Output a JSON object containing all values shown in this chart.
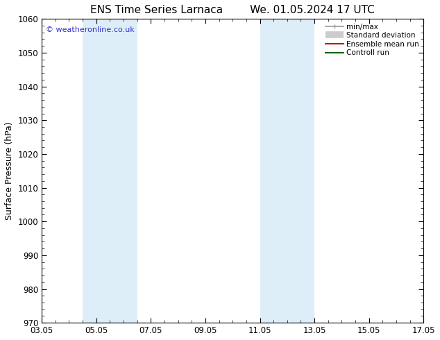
{
  "title_left": "ENS Time Series Larnaca",
  "title_right": "We. 01.05.2024 17 UTC",
  "ylabel": "Surface Pressure (hPa)",
  "ylim": [
    970,
    1060
  ],
  "yticks": [
    970,
    980,
    990,
    1000,
    1010,
    1020,
    1030,
    1040,
    1050,
    1060
  ],
  "xlim": [
    0,
    14
  ],
  "xtick_labels": [
    "03.05",
    "05.05",
    "07.05",
    "09.05",
    "11.05",
    "13.05",
    "15.05",
    "17.05"
  ],
  "xtick_positions": [
    0,
    2,
    4,
    6,
    8,
    10,
    12,
    14
  ],
  "shaded_bands": [
    {
      "x_start": 1.5,
      "x_end": 3.5
    },
    {
      "x_start": 8.0,
      "x_end": 10.0
    }
  ],
  "band_color": "#ddeef8",
  "watermark": "© weatheronline.co.uk",
  "watermark_color": "#3333cc",
  "legend_items": [
    {
      "label": "min/max",
      "color": "#999999",
      "lw": 1.2,
      "type": "line_with_caps"
    },
    {
      "label": "Standard deviation",
      "color": "#cccccc",
      "lw": 7,
      "type": "thick_line"
    },
    {
      "label": "Ensemble mean run",
      "color": "#cc0000",
      "lw": 1.5,
      "type": "line"
    },
    {
      "label": "Controll run",
      "color": "#006600",
      "lw": 1.5,
      "type": "line"
    }
  ],
  "bg_color": "#ffffff",
  "spine_color": "#000000",
  "title_fontsize": 11,
  "label_fontsize": 9,
  "tick_fontsize": 8.5,
  "legend_fontsize": 7.5
}
